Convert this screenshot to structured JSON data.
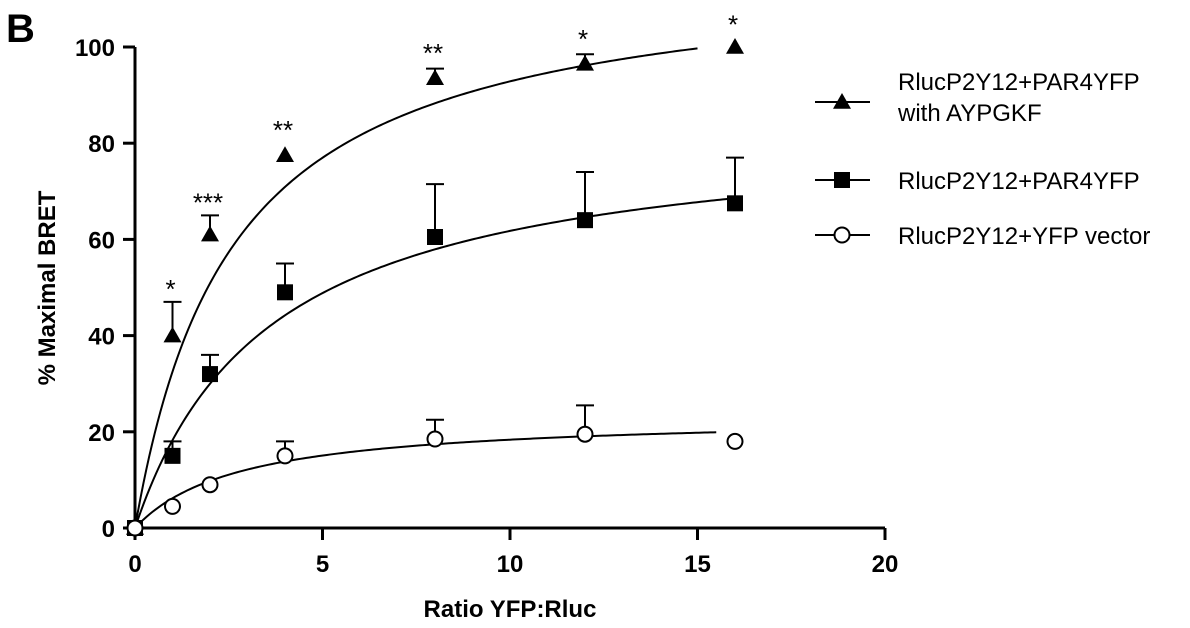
{
  "figure": {
    "panel_label": "B"
  },
  "chart_data": {
    "type": "scatter",
    "title": "",
    "xlabel": "Ratio YFP:Rluc",
    "ylabel": "% Maximal BRET",
    "xlim": [
      0,
      20
    ],
    "ylim": [
      0,
      100
    ],
    "xticks": [
      0,
      5,
      10,
      15,
      20
    ],
    "yticks": [
      0,
      20,
      40,
      60,
      80,
      100
    ],
    "grid": false,
    "legend_position": "right",
    "series": [
      {
        "name": "RlucP2Y12+PAR4YFP with AYPGKF",
        "name_lines": [
          "RlucP2Y12+PAR4YFP",
          "with AYPGKF"
        ],
        "marker": "triangle",
        "x": [
          0,
          1,
          2,
          4,
          8,
          12,
          16
        ],
        "y": [
          0,
          40,
          61,
          77.5,
          93.5,
          96.5,
          100
        ],
        "error": [
          0,
          7,
          4,
          0,
          2,
          2,
          0
        ],
        "curve": {
          "bmax": 117,
          "kd": 2.6,
          "x_end": 15
        }
      },
      {
        "name": "RlucP2Y12+PAR4YFP",
        "name_lines": [
          "RlucP2Y12+PAR4YFP"
        ],
        "marker": "square",
        "x": [
          0,
          1,
          2,
          4,
          8,
          12,
          16
        ],
        "y": [
          0,
          15,
          32,
          49,
          60.5,
          64,
          67.5
        ],
        "error": [
          0,
          3,
          4,
          6,
          11,
          10,
          9.5
        ],
        "curve": {
          "bmax": 84,
          "kd": 3.6,
          "x_end": 16
        }
      },
      {
        "name": "RlucP2Y12+YFP vector",
        "name_lines": [
          "RlucP2Y12+YFP vector"
        ],
        "marker": "circle",
        "x": [
          0,
          1,
          2,
          4,
          8,
          12,
          16
        ],
        "y": [
          0,
          4.5,
          9,
          15,
          18.5,
          19.5,
          18
        ],
        "error": [
          0,
          0,
          0,
          3,
          4,
          6,
          0
        ],
        "curve": {
          "bmax": 23.5,
          "kd": 2.8,
          "x_end": 15.5
        }
      }
    ],
    "annotations": [
      {
        "text": "*",
        "x": 1,
        "y": 47
      },
      {
        "text": "***",
        "x": 2,
        "y": 65
      },
      {
        "text": "**",
        "x": 4,
        "y": 80
      },
      {
        "text": "**",
        "x": 8,
        "y": 96
      },
      {
        "text": "*",
        "x": 12,
        "y": 99
      },
      {
        "text": "*",
        "x": 16,
        "y": 102
      }
    ]
  }
}
